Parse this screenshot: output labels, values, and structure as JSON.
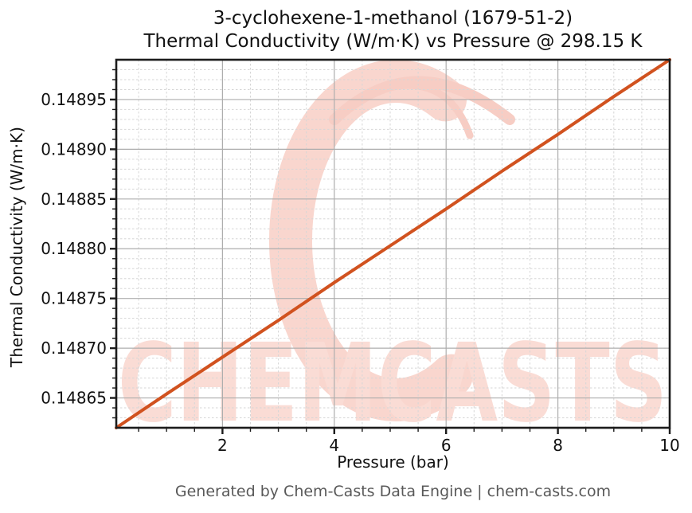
{
  "header": {
    "title_line1": "3-cyclohexene-1-methanol (1679-51-2)",
    "title_line2": "Thermal Conductivity (W/m·K) vs Pressure @ 298.15 K"
  },
  "footer": {
    "text": "Generated by Chem-Casts Data Engine | chem-casts.com"
  },
  "watermark": {
    "logo_letter": "C",
    "text": "CHEMCASTS",
    "logo_color": "#f9d6ce",
    "text_color": "#fadcd5",
    "flourish_color": "#f7cdc4"
  },
  "colors": {
    "line": "#d1521f",
    "grid_major": "#adadad",
    "grid_minor": "#d6d6d6",
    "spine": "#1c1c1c",
    "tick_label": "#111111",
    "footer_text": "#595959"
  },
  "chart_data": {
    "type": "line",
    "title": "3-cyclohexene-1-methanol (1679-51-2) — Thermal Conductivity (W/m·K) vs Pressure @ 298.15 K",
    "xlabel": "Pressure (bar)",
    "ylabel": "Thermal Conductivity (W/m·K)",
    "xlim": [
      0.1,
      10
    ],
    "ylim": [
      0.14862,
      0.14899
    ],
    "x_ticks": [
      2,
      4,
      6,
      8,
      10
    ],
    "x_tick_labels": [
      "2",
      "4",
      "6",
      "8",
      "10"
    ],
    "y_ticks": [
      0.14865,
      0.1487,
      0.14875,
      0.1488,
      0.14885,
      0.1489,
      0.14895
    ],
    "y_tick_labels": [
      "0.14865",
      "0.14870",
      "0.14875",
      "0.14880",
      "0.14885",
      "0.14890",
      "0.14895"
    ],
    "x_minor_step": 0.5,
    "y_minor_step": 1e-05,
    "grid": true,
    "legend": "none",
    "line_color": "#d1521f",
    "series": [
      {
        "name": "Thermal Conductivity",
        "x": [
          0.1,
          1,
          2,
          3,
          4,
          5,
          6,
          7,
          8,
          9,
          10
        ],
        "y": [
          0.14862,
          0.148654,
          0.148691,
          0.148728,
          0.148766,
          0.148803,
          0.14884,
          0.148878,
          0.148915,
          0.148953,
          0.14899
        ]
      }
    ]
  }
}
